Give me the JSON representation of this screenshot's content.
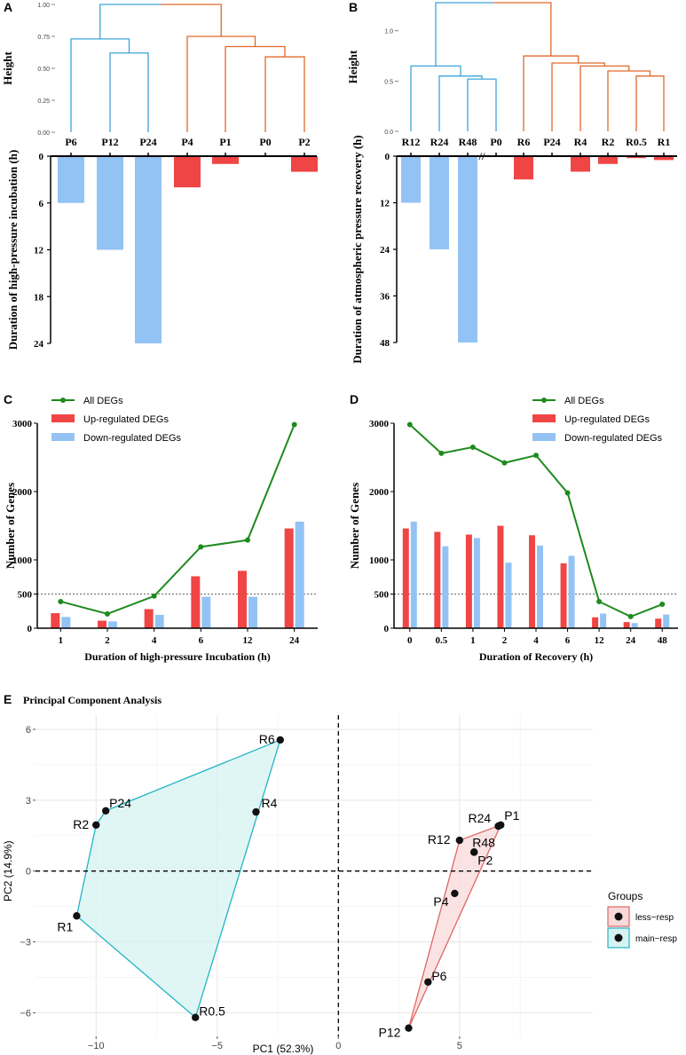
{
  "colors": {
    "blue": "#3DA5D9",
    "orange": "#E06A2B",
    "bar_blue": "#93C3F5",
    "bar_red": "#F04545",
    "line_green": "#1E8B1E",
    "hull_blue_stroke": "#22B5C5",
    "hull_blue_fill": "#D6F3F1",
    "hull_red_stroke": "#E06666",
    "hull_red_fill": "#F9DADA",
    "grid": "#E5E5E5"
  },
  "panels": {
    "A": {
      "letter": "A"
    },
    "B": {
      "letter": "B"
    },
    "C": {
      "letter": "C"
    },
    "D": {
      "letter": "D"
    },
    "E": {
      "letter": "E",
      "title": "Principal Component Analysis"
    }
  },
  "chart_data": [
    {
      "panel": "A",
      "type": "bar",
      "dendrogram": {
        "ylabel": "Height",
        "yticks": [
          "0.00",
          "0.25",
          "0.50",
          "0.75",
          "1.00"
        ],
        "leaves": [
          "P6",
          "P12",
          "P24",
          "P4",
          "P1",
          "P0",
          "P2"
        ],
        "merges": [
          {
            "left": "P12",
            "right": "P24",
            "height": 0.62,
            "cluster": "blue"
          },
          {
            "left": "P6",
            "right": "P12+P24",
            "height": 0.73,
            "cluster": "blue"
          },
          {
            "left": "P0",
            "right": "P2",
            "height": 0.59,
            "cluster": "orange"
          },
          {
            "left": "P1",
            "right": "P0+P2",
            "height": 0.67,
            "cluster": "orange"
          },
          {
            "left": "P4",
            "right": "P1+P0+P2",
            "height": 0.75,
            "cluster": "orange"
          },
          {
            "left": "blue",
            "right": "orange",
            "height": 1.0,
            "cluster": "root"
          }
        ]
      },
      "categories": [
        "P6",
        "P12",
        "P24",
        "P4",
        "P1",
        "P0",
        "P2"
      ],
      "values": [
        6,
        12,
        24,
        4,
        1,
        0,
        2
      ],
      "bar_colors": [
        "blue",
        "blue",
        "blue",
        "red",
        "red",
        "red",
        "red"
      ],
      "ylabel": "Duration of high-pressure incubation (h)",
      "yticks": [
        "0",
        "6",
        "12",
        "18",
        "24"
      ],
      "ylim": [
        0,
        24
      ]
    },
    {
      "panel": "B",
      "type": "bar",
      "dendrogram": {
        "ylabel": "Height",
        "yticks": [
          "0.0",
          "0.5",
          "1.0"
        ],
        "leaves": [
          "R12",
          "R24",
          "R48",
          "P0",
          "R6",
          "P24",
          "R4",
          "R2",
          "R0.5",
          "R1"
        ],
        "merges": [
          {
            "left": "R48",
            "right": "P0",
            "height": 0.52,
            "cluster": "blue"
          },
          {
            "left": "R24",
            "right": "R48+P0",
            "height": 0.55,
            "cluster": "blue"
          },
          {
            "left": "R12",
            "right": "R24+R48+P0",
            "height": 0.65,
            "cluster": "blue"
          },
          {
            "left": "R0.5",
            "right": "R1",
            "height": 0.55,
            "cluster": "orange"
          },
          {
            "left": "R2",
            "right": "R0.5+R1",
            "height": 0.6,
            "cluster": "orange"
          },
          {
            "left": "R4",
            "right": "R2+R0.5+R1",
            "height": 0.65,
            "cluster": "orange"
          },
          {
            "left": "P24",
            "right": "R4+R2+R0.5+R1",
            "height": 0.68,
            "cluster": "orange"
          },
          {
            "left": "R6",
            "right": "P24+R4+R2+R0.5+R1",
            "height": 0.75,
            "cluster": "orange"
          },
          {
            "left": "blue",
            "right": "orange",
            "height": 1.28,
            "cluster": "root"
          }
        ]
      },
      "categories": [
        "R12",
        "R24",
        "R48",
        "P0",
        "R6",
        "P24",
        "R4",
        "R2",
        "R0.5",
        "R1"
      ],
      "values": [
        12,
        24,
        48,
        0,
        6,
        0,
        4,
        2,
        0.5,
        1
      ],
      "bar_colors": [
        "blue",
        "blue",
        "blue",
        "none",
        "red",
        "red",
        "red",
        "red",
        "red",
        "red"
      ],
      "axis_break": "//",
      "ylabel": "Duration of atmospheric pressure recovery (h)",
      "yticks": [
        "0",
        "12",
        "24",
        "36",
        "48"
      ],
      "ylim": [
        0,
        48
      ]
    },
    {
      "panel": "C",
      "type": "bar",
      "categories": [
        "1",
        "2",
        "4",
        "6",
        "12",
        "24"
      ],
      "series": [
        {
          "name": "All DEGs",
          "kind": "line",
          "values": [
            390,
            210,
            470,
            1190,
            1290,
            2980
          ]
        },
        {
          "name": "Up-regulated DEGs",
          "kind": "bar",
          "values": [
            220,
            110,
            280,
            760,
            840,
            1460
          ]
        },
        {
          "name": "Down-regulated DEGs",
          "kind": "bar",
          "values": [
            165,
            100,
            195,
            460,
            460,
            1560
          ]
        }
      ],
      "xlabel": "Duration of high-pressure Incubation (h)",
      "ylabel": "Number of Genes",
      "yticks": [
        "0",
        "500",
        "1000",
        "2000",
        "3000"
      ],
      "ylim": [
        0,
        3000
      ],
      "reference_line": 500
    },
    {
      "panel": "D",
      "type": "bar",
      "categories": [
        "0",
        "0.5",
        "1",
        "2",
        "4",
        "6",
        "12",
        "24",
        "48"
      ],
      "series": [
        {
          "name": "All DEGs",
          "kind": "line",
          "values": [
            2980,
            2560,
            2650,
            2420,
            2530,
            1980,
            390,
            170,
            350
          ]
        },
        {
          "name": "Up-regulated DEGs",
          "kind": "bar",
          "values": [
            1460,
            1410,
            1370,
            1500,
            1360,
            950,
            160,
            90,
            140
          ]
        },
        {
          "name": "Down-regulated DEGs",
          "kind": "bar",
          "values": [
            1560,
            1200,
            1320,
            960,
            1210,
            1060,
            215,
            75,
            200
          ]
        }
      ],
      "xlabel": "Duration of Recovery (h)",
      "ylabel": "Number of Genes",
      "yticks": [
        "0",
        "500",
        "1000",
        "2000",
        "3000"
      ],
      "ylim": [
        0,
        3000
      ],
      "reference_line": 500
    },
    {
      "panel": "E",
      "type": "scatter",
      "title": "Principal Component Analysis",
      "xlabel": "PC1 (52.3%)",
      "ylabel": "PC2 (14.9%)",
      "xlim": [
        -12.5,
        10.5
      ],
      "ylim": [
        -7.0,
        6.6
      ],
      "xticks": [
        -10,
        -5,
        0,
        5
      ],
      "yticks": [
        -6,
        -3,
        0,
        3,
        6
      ],
      "xtick_labels": [
        "−10",
        "−5",
        "0",
        "5"
      ],
      "ytick_labels": [
        "−6",
        "−3",
        "0",
        "3",
        "6"
      ],
      "legend": {
        "title": "Groups",
        "entries": [
          {
            "name": "less−resp",
            "group": "less"
          },
          {
            "name": "main−resp",
            "group": "main"
          }
        ]
      },
      "points": [
        {
          "label": "R6",
          "x": -2.4,
          "y": 5.55,
          "group": "main"
        },
        {
          "label": "R4",
          "x": -3.4,
          "y": 2.5,
          "group": "main"
        },
        {
          "label": "P24",
          "x": -9.6,
          "y": 2.55,
          "group": "main"
        },
        {
          "label": "R2",
          "x": -10.0,
          "y": 1.95,
          "group": "main"
        },
        {
          "label": "R1",
          "x": -10.8,
          "y": -1.9,
          "group": "main"
        },
        {
          "label": "R0.5",
          "x": -5.9,
          "y": -6.2,
          "group": "main"
        },
        {
          "label": "P1",
          "x": 6.7,
          "y": 1.95,
          "group": "less"
        },
        {
          "label": "R24",
          "x": 6.6,
          "y": 1.9,
          "group": "less"
        },
        {
          "label": "R12",
          "x": 5.0,
          "y": 1.3,
          "group": "less"
        },
        {
          "label": "R48",
          "x": 5.6,
          "y": 0.8,
          "group": "less"
        },
        {
          "label": "P2",
          "x": 5.6,
          "y": 0.8,
          "group": "less"
        },
        {
          "label": "P4",
          "x": 4.8,
          "y": -0.95,
          "group": "less"
        },
        {
          "label": "P6",
          "x": 3.7,
          "y": -4.7,
          "group": "less"
        },
        {
          "label": "P12",
          "x": 2.9,
          "y": -6.65,
          "group": "less"
        }
      ],
      "hulls": {
        "main": [
          "R6",
          "R0.5",
          "R1",
          "R2",
          "P24"
        ],
        "less": [
          "P1",
          "P12",
          "R12"
        ]
      }
    }
  ]
}
